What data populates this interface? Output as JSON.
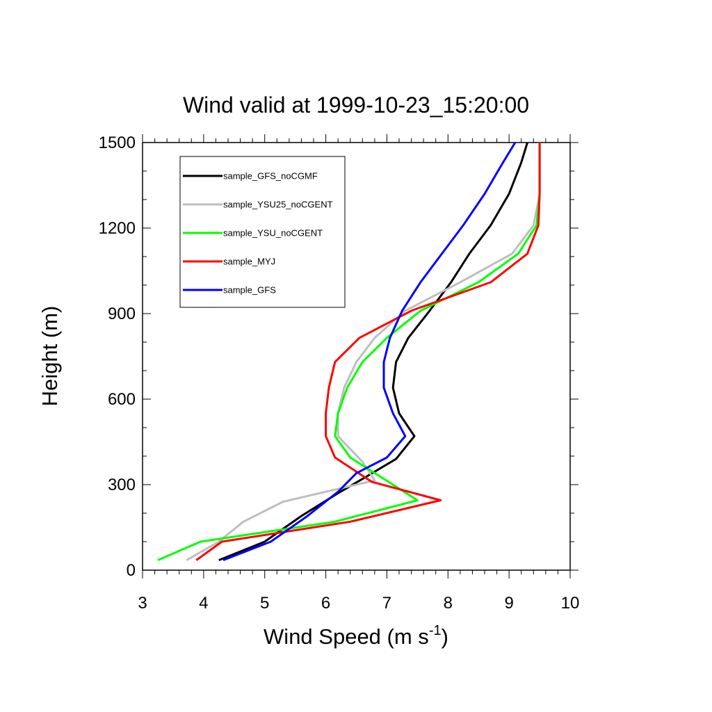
{
  "chart_data": {
    "type": "line",
    "title": "Wind valid at 1999-10-23_15:20:00",
    "xlabel": {
      "base": "Wind Speed (m s",
      "sup": "-1",
      "close": ")"
    },
    "ylabel": "Height (m)",
    "xlim": [
      3,
      10
    ],
    "ylim": [
      0,
      1500
    ],
    "x_ticks": [
      3,
      4,
      5,
      6,
      7,
      8,
      9,
      10
    ],
    "y_ticks": [
      0,
      300,
      600,
      900,
      1200,
      1500
    ],
    "grid": false,
    "legend_position": "top-left",
    "series": [
      {
        "name": "sample_GFS_noCGMF",
        "color": "#000000",
        "points": [
          [
            4.25,
            35
          ],
          [
            5.0,
            100
          ],
          [
            5.6,
            190
          ],
          [
            6.2,
            270
          ],
          [
            6.6,
            320
          ],
          [
            7.15,
            390
          ],
          [
            7.45,
            470
          ],
          [
            7.2,
            550
          ],
          [
            7.1,
            640
          ],
          [
            7.15,
            730
          ],
          [
            7.35,
            815
          ],
          [
            7.7,
            910
          ],
          [
            8.05,
            1010
          ],
          [
            8.35,
            1110
          ],
          [
            8.7,
            1210
          ],
          [
            9.0,
            1320
          ],
          [
            9.2,
            1430
          ],
          [
            9.3,
            1500
          ]
        ]
      },
      {
        "name": "sample_YSU25_noCGENT",
        "color": "#bebebe",
        "points": [
          [
            3.72,
            35
          ],
          [
            4.25,
            100
          ],
          [
            4.65,
            170
          ],
          [
            5.3,
            240
          ],
          [
            6.1,
            280
          ],
          [
            6.8,
            315
          ],
          [
            6.6,
            380
          ],
          [
            6.2,
            470
          ],
          [
            6.2,
            550
          ],
          [
            6.3,
            640
          ],
          [
            6.5,
            730
          ],
          [
            6.8,
            815
          ],
          [
            7.3,
            910
          ],
          [
            8.2,
            1010
          ],
          [
            9.05,
            1110
          ],
          [
            9.4,
            1210
          ],
          [
            9.5,
            1320
          ],
          [
            9.5,
            1430
          ],
          [
            9.5,
            1500
          ]
        ]
      },
      {
        "name": "sample_YSU_noCGENT",
        "color": "#00ff00",
        "points": [
          [
            3.25,
            35
          ],
          [
            3.95,
            100
          ],
          [
            6.15,
            170
          ],
          [
            7.5,
            245
          ],
          [
            6.4,
            395
          ],
          [
            6.15,
            470
          ],
          [
            6.2,
            550
          ],
          [
            6.35,
            640
          ],
          [
            6.6,
            730
          ],
          [
            7.0,
            815
          ],
          [
            7.55,
            910
          ],
          [
            8.5,
            1010
          ],
          [
            9.15,
            1110
          ],
          [
            9.45,
            1210
          ],
          [
            9.5,
            1320
          ],
          [
            9.5,
            1430
          ],
          [
            9.5,
            1500
          ]
        ]
      },
      {
        "name": "sample_MYJ",
        "color": "#ff0000",
        "points": [
          [
            3.88,
            35
          ],
          [
            4.3,
            100
          ],
          [
            6.4,
            170
          ],
          [
            7.88,
            245
          ],
          [
            6.75,
            310
          ],
          [
            6.15,
            395
          ],
          [
            6.0,
            470
          ],
          [
            6.0,
            550
          ],
          [
            6.05,
            640
          ],
          [
            6.15,
            730
          ],
          [
            6.55,
            815
          ],
          [
            7.4,
            910
          ],
          [
            8.7,
            1010
          ],
          [
            9.3,
            1110
          ],
          [
            9.48,
            1210
          ],
          [
            9.5,
            1320
          ],
          [
            9.5,
            1430
          ],
          [
            9.5,
            1500
          ]
        ]
      },
      {
        "name": "sample_GFS",
        "color": "#0000ff",
        "points": [
          [
            4.32,
            35
          ],
          [
            5.1,
            100
          ],
          [
            5.7,
            190
          ],
          [
            6.2,
            275
          ],
          [
            6.5,
            340
          ],
          [
            7.0,
            395
          ],
          [
            7.3,
            470
          ],
          [
            7.1,
            550
          ],
          [
            6.95,
            640
          ],
          [
            6.95,
            730
          ],
          [
            7.05,
            815
          ],
          [
            7.25,
            910
          ],
          [
            7.55,
            1010
          ],
          [
            7.9,
            1110
          ],
          [
            8.25,
            1210
          ],
          [
            8.6,
            1320
          ],
          [
            8.9,
            1430
          ],
          [
            9.1,
            1500
          ]
        ]
      }
    ]
  }
}
